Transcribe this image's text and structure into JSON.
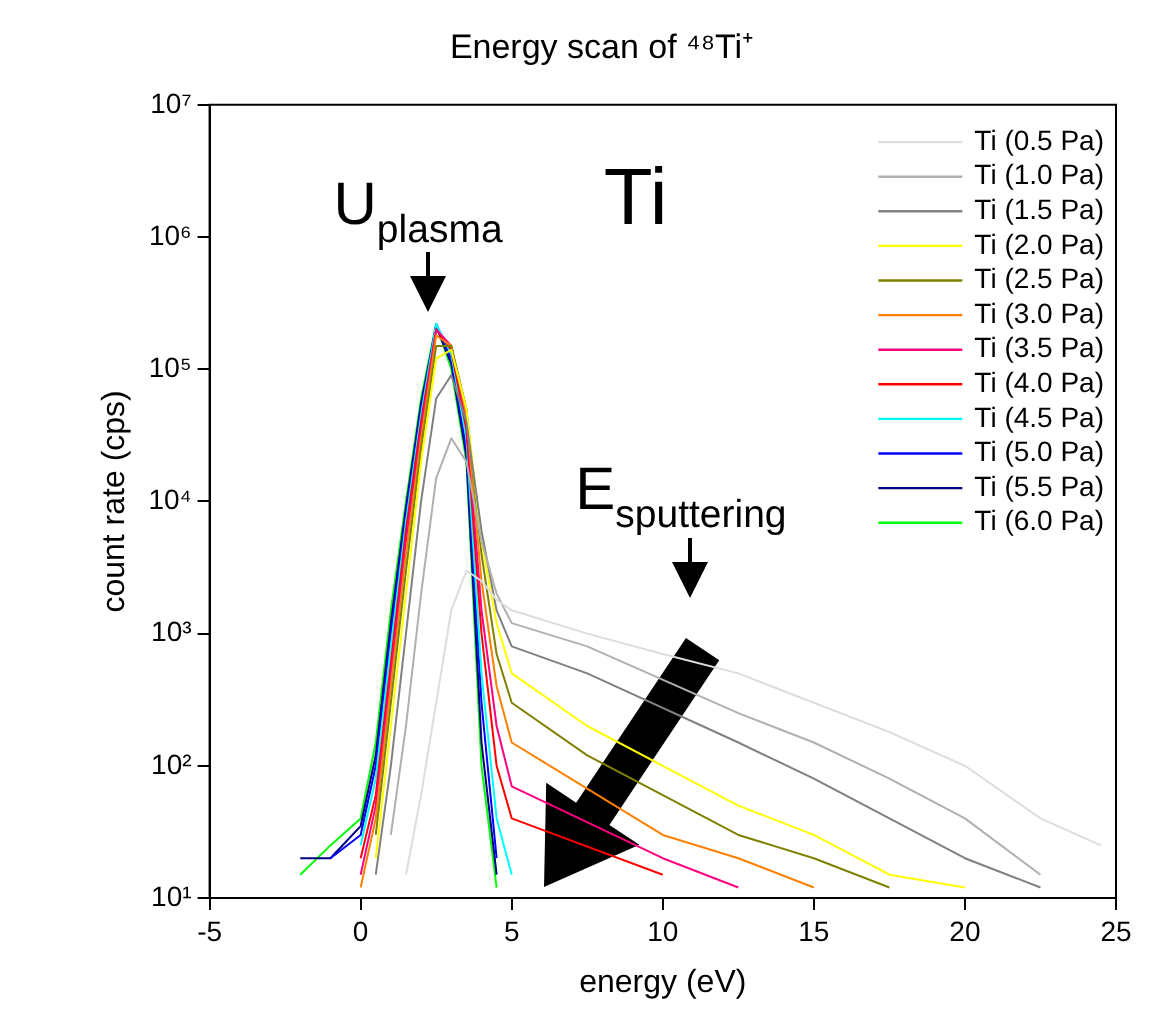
{
  "chart_data": {
    "type": "line",
    "title": "Energy scan of ⁴⁸Ti⁺",
    "xlabel": "energy (eV)",
    "ylabel": "count rate (cps)",
    "x": [
      -2,
      -1,
      0,
      0.5,
      1,
      1.5,
      2,
      2.5,
      3,
      3.5,
      4,
      4.5,
      5,
      7.5,
      10,
      12.5,
      15,
      17.5,
      20,
      22.5,
      24.5
    ],
    "series": [
      {
        "name": "Ti (0.5 Pa)",
        "color": "#dddddd",
        "values": [
          null,
          null,
          null,
          null,
          null,
          15,
          60,
          300,
          1500,
          3000,
          2500,
          1800,
          1500,
          1000,
          700,
          500,
          300,
          180,
          100,
          40,
          25
        ]
      },
      {
        "name": "Ti (1.0 Pa)",
        "color": "#b0b0b0",
        "x": [
          1,
          1.5,
          2,
          2.5,
          3,
          3.5,
          4,
          4.5,
          5,
          7.5,
          12.5,
          15,
          17.5,
          20,
          22.5
        ],
        "values": [
          30,
          200,
          2000,
          15000,
          30000,
          20000,
          5000,
          2000,
          1200,
          800,
          250,
          150,
          80,
          40,
          15
        ]
      },
      {
        "name": "Ti (1.5 Pa)",
        "color": "#808080",
        "x": [
          0.5,
          1,
          1.5,
          2,
          2.5,
          3,
          3.5,
          4,
          4.5,
          5,
          7.5,
          12.5,
          15,
          17.5,
          20,
          22.5
        ],
        "values": [
          15,
          100,
          1000,
          10000,
          60000,
          90000,
          40000,
          6000,
          1500,
          800,
          500,
          150,
          80,
          40,
          20,
          12
        ]
      },
      {
        "name": "Ti (2.0 Pa)",
        "color": "#ffff00",
        "values": [
          null,
          null,
          null,
          20,
          200,
          2000,
          20000,
          120000,
          140000,
          50000,
          5000,
          1200,
          500,
          200,
          100,
          50,
          30,
          15,
          12,
          null,
          null
        ]
      },
      {
        "name": "Ti (2.5 Pa)",
        "color": "#808000",
        "values": [
          null,
          null,
          null,
          30,
          300,
          3000,
          25000,
          150000,
          150000,
          50000,
          4000,
          700,
          300,
          120,
          60,
          30,
          20,
          12,
          null,
          null,
          null
        ]
      },
      {
        "name": "Ti (3.0 Pa)",
        "color": "#ff8000",
        "x": [
          0,
          0.5,
          1,
          1.5,
          2,
          2.5,
          3,
          3.5,
          4,
          4.5,
          5,
          10,
          12.5,
          15
        ],
        "values": [
          12,
          40,
          400,
          4000,
          30000,
          180000,
          150000,
          45000,
          2500,
          400,
          150,
          30,
          20,
          12
        ]
      },
      {
        "name": "Ti (3.5 Pa)",
        "color": "#ff0080",
        "x": [
          0,
          0.5,
          1,
          1.5,
          2,
          2.5,
          3,
          3.5,
          4,
          4.5,
          5,
          10,
          12.5
        ],
        "values": [
          15,
          50,
          500,
          5000,
          35000,
          200000,
          150000,
          40000,
          1500,
          200,
          70,
          20,
          12
        ]
      },
      {
        "name": "Ti (4.0 Pa)",
        "color": "#ff0000",
        "x": [
          0,
          0.5,
          1,
          1.5,
          2,
          2.5,
          3,
          3.5,
          4,
          4.5,
          5,
          10
        ],
        "values": [
          20,
          60,
          600,
          6000,
          40000,
          200000,
          140000,
          35000,
          1000,
          100,
          40,
          15
        ]
      },
      {
        "name": "Ti (4.5 Pa)",
        "color": "#00ffff",
        "values": [
          null,
          null,
          25,
          80,
          800,
          7000,
          45000,
          220000,
          130000,
          30000,
          500,
          40,
          15,
          null,
          null,
          null,
          null,
          null,
          null,
          null,
          null
        ]
      },
      {
        "name": "Ti (5.0 Pa)",
        "color": "#0000ff",
        "values": [
          null,
          20,
          30,
          100,
          1000,
          8000,
          50000,
          220000,
          120000,
          25000,
          300,
          20,
          null,
          null,
          null,
          null,
          null,
          null,
          null,
          null,
          null
        ]
      },
      {
        "name": "Ti (5.5 Pa)",
        "color": "#000080",
        "values": [
          20,
          20,
          35,
          120,
          1200,
          9000,
          55000,
          210000,
          110000,
          22000,
          150,
          15,
          null,
          null,
          null,
          null,
          null,
          null,
          null,
          null,
          null
        ]
      },
      {
        "name": "Ti (6.0 Pa)",
        "color": "#00ff00",
        "values": [
          15,
          25,
          40,
          150,
          1500,
          10000,
          60000,
          220000,
          100000,
          20000,
          100,
          12,
          null,
          null,
          null,
          null,
          null,
          null,
          null,
          null,
          null
        ]
      }
    ],
    "annotations": [
      "U$_{plasma}$",
      "Ti",
      "E$_{sputtering}$"
    ],
    "xlim": [
      -5,
      25
    ],
    "xticks": [
      -5,
      0,
      5,
      10,
      15,
      20,
      25
    ],
    "ylim": [
      10,
      10000000
    ],
    "yticks": [
      {
        "value": 10,
        "label": "10¹"
      },
      {
        "value": 100,
        "label": "10²"
      },
      {
        "value": 1000,
        "label": "10³"
      },
      {
        "value": 10000,
        "label": "10⁴"
      },
      {
        "value": 100000,
        "label": "10⁵"
      },
      {
        "value": 1000000,
        "label": "10⁶"
      },
      {
        "value": 10000000,
        "label": "10⁷"
      }
    ],
    "log": "y",
    "grid": false,
    "legend": "top right"
  }
}
